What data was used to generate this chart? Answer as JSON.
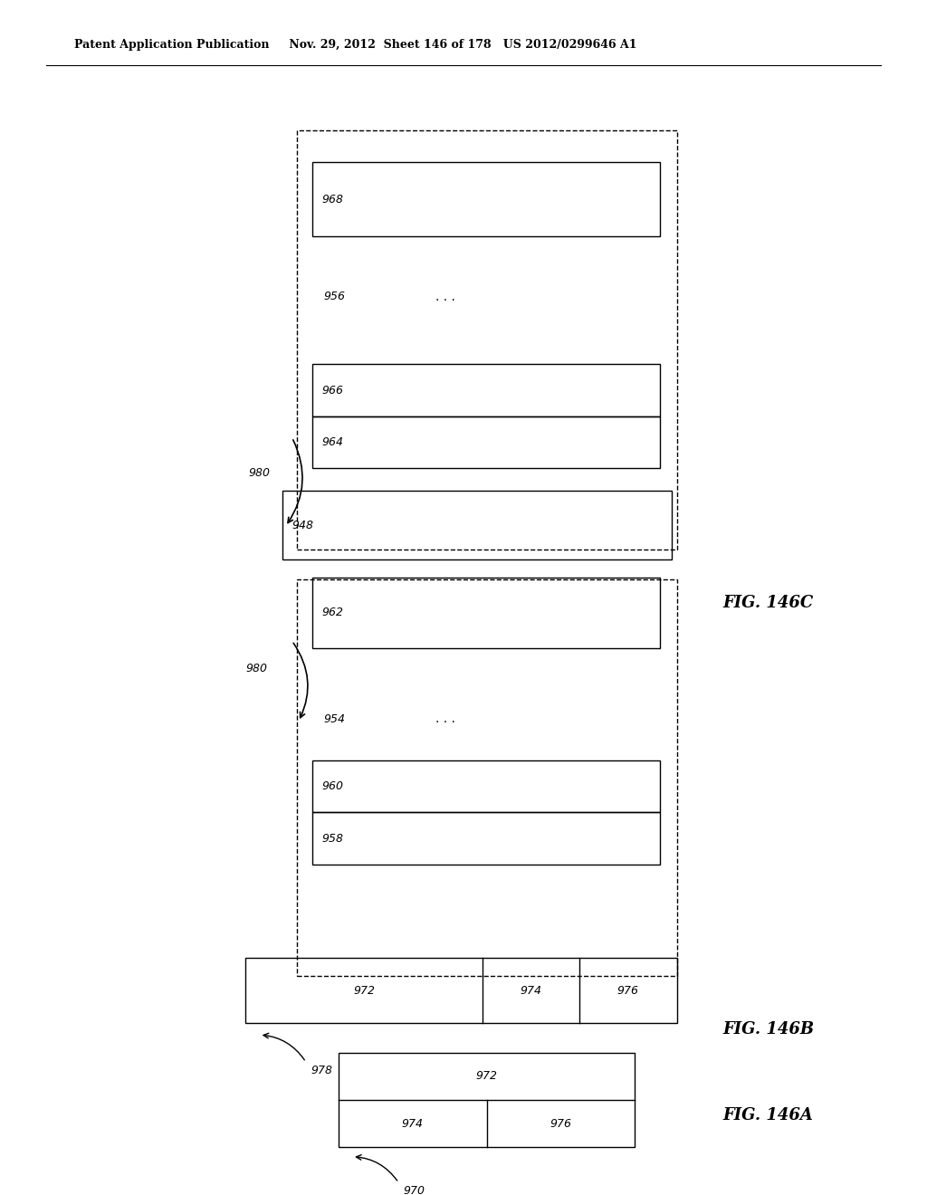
{
  "bg_color": "#ffffff",
  "header_text": "Patent Application Publication     Nov. 29, 2012  Sheet 146 of 178   US 2012/0299646 A1",
  "fig_label_C": "FIG. 146C",
  "fig_label_B": "FIG. 146B",
  "fig_label_A": "FIG. 146A"
}
